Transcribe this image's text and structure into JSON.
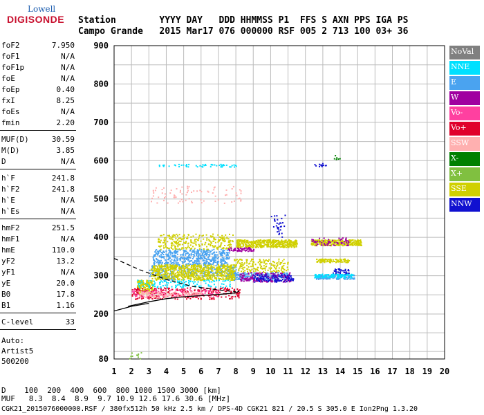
{
  "logo": {
    "line1": "Lowell",
    "line2": "DIGISONDE"
  },
  "header": {
    "line1": "Station        YYYY DAY   DDD HHMMSS P1  FFS S AXN PPS IGA PS",
    "line2": "Campo Grande   2015 Mar17 076 000000 RSF 005 2 713 100 03+ 36"
  },
  "params_group1": [
    {
      "k": "foF2",
      "v": "7.950"
    },
    {
      "k": "foF1",
      "v": "N/A"
    },
    {
      "k": "foF1p",
      "v": "N/A"
    },
    {
      "k": "foE",
      "v": "N/A"
    },
    {
      "k": "foEp",
      "v": "0.40"
    },
    {
      "k": "fxI",
      "v": "8.25"
    },
    {
      "k": "foEs",
      "v": "N/A"
    },
    {
      "k": "fmin",
      "v": "2.20"
    }
  ],
  "params_group2": [
    {
      "k": "MUF(D)",
      "v": "30.59"
    },
    {
      "k": "M(D)",
      "v": "3.85"
    },
    {
      "k": "D",
      "v": "N/A"
    }
  ],
  "params_group3": [
    {
      "k": "h`F",
      "v": "241.8"
    },
    {
      "k": "h`F2",
      "v": "241.8"
    },
    {
      "k": "h`E",
      "v": "N/A"
    },
    {
      "k": "h`Es",
      "v": "N/A"
    }
  ],
  "params_group4": [
    {
      "k": "hmF2",
      "v": "251.5"
    },
    {
      "k": "hmF1",
      "v": "N/A"
    },
    {
      "k": "hmE",
      "v": "110.0"
    },
    {
      "k": "yF2",
      "v": "13.2"
    },
    {
      "k": "yF1",
      "v": "N/A"
    },
    {
      "k": "yE",
      "v": "20.0"
    },
    {
      "k": "B0",
      "v": "17.8"
    },
    {
      "k": "B1",
      "v": "1.16"
    }
  ],
  "params_group5": [
    {
      "k": "C-level",
      "v": "33"
    }
  ],
  "auto": {
    "line1": "Auto:",
    "line2": "Artist5",
    "line3": "500200"
  },
  "legend": [
    {
      "label": "NoVal",
      "color": "#808080"
    },
    {
      "label": "NNE",
      "color": "#00e0ff"
    },
    {
      "label": "E",
      "color": "#4aa3f0"
    },
    {
      "label": "W",
      "color": "#a000a0"
    },
    {
      "label": "Vo-",
      "color": "#ff40a0"
    },
    {
      "label": "Vo+",
      "color": "#e0002a"
    },
    {
      "label": "SSW",
      "color": "#ffb0b0"
    },
    {
      "label": "X-",
      "color": "#008000"
    },
    {
      "label": "X+",
      "color": "#80c040"
    },
    {
      "label": "SSE",
      "color": "#d0d000"
    },
    {
      "label": "NNW",
      "color": "#1010d0"
    }
  ],
  "footer": {
    "line1": "D    100  200  400  600  800 1000 1500 3000 [km]",
    "line2": "MUF   8.3  8.4  8.9  9.7 10.9 12.6 17.6 30.6 [MHz]",
    "line3": "CGK21_2015076000000.RSF / 380fx512h 50 kHz 2.5 km / DPS-4D CGK21 821 / 20.5 S 305.0 E Ion2Png 1.3.20"
  },
  "chart_data": {
    "type": "scatter",
    "title": "",
    "xlabel": "",
    "ylabel": "",
    "xlim": [
      1,
      20
    ],
    "ylim": [
      80,
      900
    ],
    "x_ticks": [
      1,
      2,
      3,
      4,
      5,
      6,
      7,
      8,
      9,
      10,
      11,
      12,
      13,
      14,
      15,
      16,
      17,
      18,
      19,
      20
    ],
    "y_ticks": [
      80,
      200,
      300,
      400,
      500,
      600,
      700,
      800,
      900
    ],
    "grid": true,
    "clusters": [
      {
        "name": "E",
        "x": [
          3.2,
          7.6
        ],
        "y": [
          330,
          370
        ],
        "n": 500
      },
      {
        "name": "E",
        "x": [
          3.0,
          8.0
        ],
        "y": [
          300,
          330
        ],
        "n": 250
      },
      {
        "name": "E",
        "x": [
          7.5,
          11.0
        ],
        "y": [
          290,
          310
        ],
        "n": 200
      },
      {
        "name": "E",
        "x": [
          12.6,
          14.8
        ],
        "y": [
          292,
          305
        ],
        "n": 140
      },
      {
        "name": "E",
        "x": [
          3.5,
          4.5
        ],
        "y": [
          290,
          300
        ],
        "n": 40
      },
      {
        "name": "SSE",
        "x": [
          3.1,
          7.9
        ],
        "y": [
          290,
          330
        ],
        "n": 700
      },
      {
        "name": "SSE",
        "x": [
          2.3,
          3.2
        ],
        "y": [
          255,
          290
        ],
        "n": 160
      },
      {
        "name": "SSE",
        "x": [
          3.5,
          7.8
        ],
        "y": [
          370,
          410
        ],
        "n": 260
      },
      {
        "name": "SSE",
        "x": [
          8.0,
          11.5
        ],
        "y": [
          375,
          395
        ],
        "n": 420
      },
      {
        "name": "SSE",
        "x": [
          12.3,
          15.2
        ],
        "y": [
          380,
          395
        ],
        "n": 320
      },
      {
        "name": "SSE",
        "x": [
          12.6,
          14.5
        ],
        "y": [
          336,
          345
        ],
        "n": 90
      },
      {
        "name": "SSE",
        "x": [
          7.8,
          11.0
        ],
        "y": [
          310,
          345
        ],
        "n": 180
      },
      {
        "name": "W",
        "x": [
          8.2,
          11.2
        ],
        "y": [
          285,
          310
        ],
        "n": 160
      },
      {
        "name": "W",
        "x": [
          7.5,
          9.0
        ],
        "y": [
          365,
          375
        ],
        "n": 60
      },
      {
        "name": "W",
        "x": [
          12.3,
          14.5
        ],
        "y": [
          380,
          400
        ],
        "n": 60
      },
      {
        "name": "NNW",
        "x": [
          9.0,
          11.3
        ],
        "y": [
          285,
          305
        ],
        "n": 100
      },
      {
        "name": "NNW",
        "x": [
          13.5,
          14.5
        ],
        "y": [
          305,
          320
        ],
        "n": 40
      },
      {
        "name": "NNW",
        "x": [
          12.5,
          13.2
        ],
        "y": [
          585,
          595
        ],
        "n": 12
      },
      {
        "name": "NNW",
        "x": [
          10.0,
          10.8
        ],
        "y": [
          400,
          460
        ],
        "n": 30
      },
      {
        "name": "Vo+",
        "x": [
          2.0,
          8.2
        ],
        "y": [
          240,
          270
        ],
        "n": 280
      },
      {
        "name": "Vo-",
        "x": [
          2.0,
          7.0
        ],
        "y": [
          245,
          265
        ],
        "n": 120
      },
      {
        "name": "SSW",
        "x": [
          2.4,
          6.0
        ],
        "y": [
          245,
          260
        ],
        "n": 120
      },
      {
        "name": "SSW",
        "x": [
          3.1,
          8.3
        ],
        "y": [
          490,
          535
        ],
        "n": 80
      },
      {
        "name": "NNE",
        "x": [
          2.3,
          7.8
        ],
        "y": [
          270,
          290
        ],
        "n": 120
      },
      {
        "name": "NNE",
        "x": [
          3.5,
          8.0
        ],
        "y": [
          585,
          592
        ],
        "n": 50
      },
      {
        "name": "NNE",
        "x": [
          12.5,
          14.7
        ],
        "y": [
          296,
          306
        ],
        "n": 100
      },
      {
        "name": "X+",
        "x": [
          1.8,
          2.8
        ],
        "y": [
          80,
          100
        ],
        "n": 10
      },
      {
        "name": "X-",
        "x": [
          13.6,
          14.0
        ],
        "y": [
          605,
          615
        ],
        "n": 6
      }
    ],
    "curves": [
      {
        "style": "solid",
        "points": [
          [
            1.8,
            220
          ],
          [
            3,
            232
          ],
          [
            4,
            240
          ],
          [
            5,
            245
          ],
          [
            6,
            248
          ],
          [
            7,
            251
          ],
          [
            8,
            255
          ],
          [
            8.2,
            260
          ]
        ]
      },
      {
        "style": "dashed",
        "points": [
          [
            1.0,
            345
          ],
          [
            2.5,
            315
          ],
          [
            4,
            290
          ],
          [
            5.5,
            272
          ],
          [
            7,
            263
          ],
          [
            8.0,
            258
          ]
        ]
      },
      {
        "style": "solid",
        "points": [
          [
            1.0,
            208
          ],
          [
            2.0,
            220
          ],
          [
            3.0,
            228
          ]
        ]
      }
    ]
  }
}
